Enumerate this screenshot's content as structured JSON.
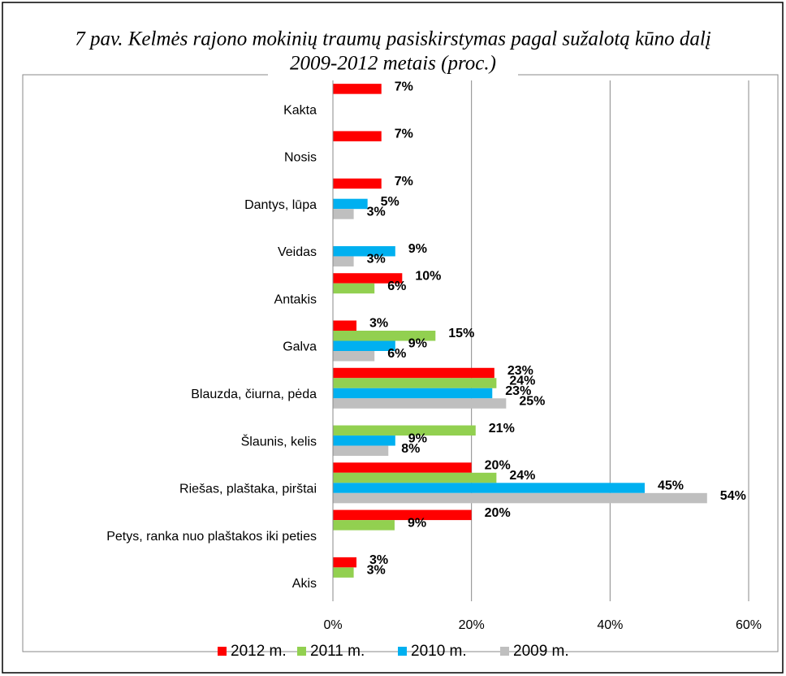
{
  "chart_data": {
    "type": "hbar",
    "title": "7 pav. Kelmės rajono mokinių traumų pasiskirstymas pagal sužalotą kūno dalį",
    "subtitle": "2009-2012 metais (proc.)",
    "categories": [
      "Kakta",
      "Nosis",
      "Dantys, lūpa",
      "Veidas",
      "Antakis",
      "Galva",
      "Blauzda, čiurna, pėda",
      "Šlaunis, kelis",
      "Riešas, plaštaka, pirštai",
      "Petys, ranka nuo plaštakos iki peties",
      "Akis"
    ],
    "series": [
      {
        "name": "2012 m.",
        "color": "#ff0000",
        "values": [
          7,
          7,
          7,
          null,
          10,
          3.4,
          23.3,
          null,
          20,
          20,
          3.4
        ],
        "value_labels": [
          "7%",
          "7%",
          "7%",
          null,
          "10%",
          "3%",
          "23%",
          null,
          "20%",
          "20%",
          "3%"
        ]
      },
      {
        "name": "2011 m.",
        "color": "#92d050",
        "values": [
          null,
          null,
          null,
          null,
          6,
          14.8,
          23.6,
          20.6,
          23.6,
          8.9,
          3
        ],
        "value_labels": [
          null,
          null,
          null,
          null,
          "6%",
          "15%",
          "24%",
          "21%",
          "24%",
          "9%",
          "3%"
        ]
      },
      {
        "name": "2010 m.",
        "color": "#00b0f0",
        "values": [
          null,
          null,
          5,
          9,
          null,
          9,
          23,
          9,
          45,
          null,
          null
        ],
        "value_labels": [
          null,
          null,
          "5%",
          "9%",
          null,
          "9%",
          "23%",
          "9%",
          "45%",
          null,
          null
        ]
      },
      {
        "name": "2009 m.",
        "color": "#bfbfbf",
        "values": [
          null,
          null,
          3,
          3,
          null,
          6,
          25,
          8,
          54,
          null,
          null
        ],
        "value_labels": [
          null,
          null,
          "3%",
          "3%",
          null,
          "6%",
          "25%",
          "8%",
          "54%",
          null,
          null
        ]
      }
    ],
    "xlim": [
      0,
      60
    ],
    "xticks": [
      {
        "value": 0,
        "label": "0%"
      },
      {
        "value": 20,
        "label": "20%"
      },
      {
        "value": 40,
        "label": "40%"
      },
      {
        "value": 60,
        "label": "60%"
      }
    ],
    "grid": true
  }
}
